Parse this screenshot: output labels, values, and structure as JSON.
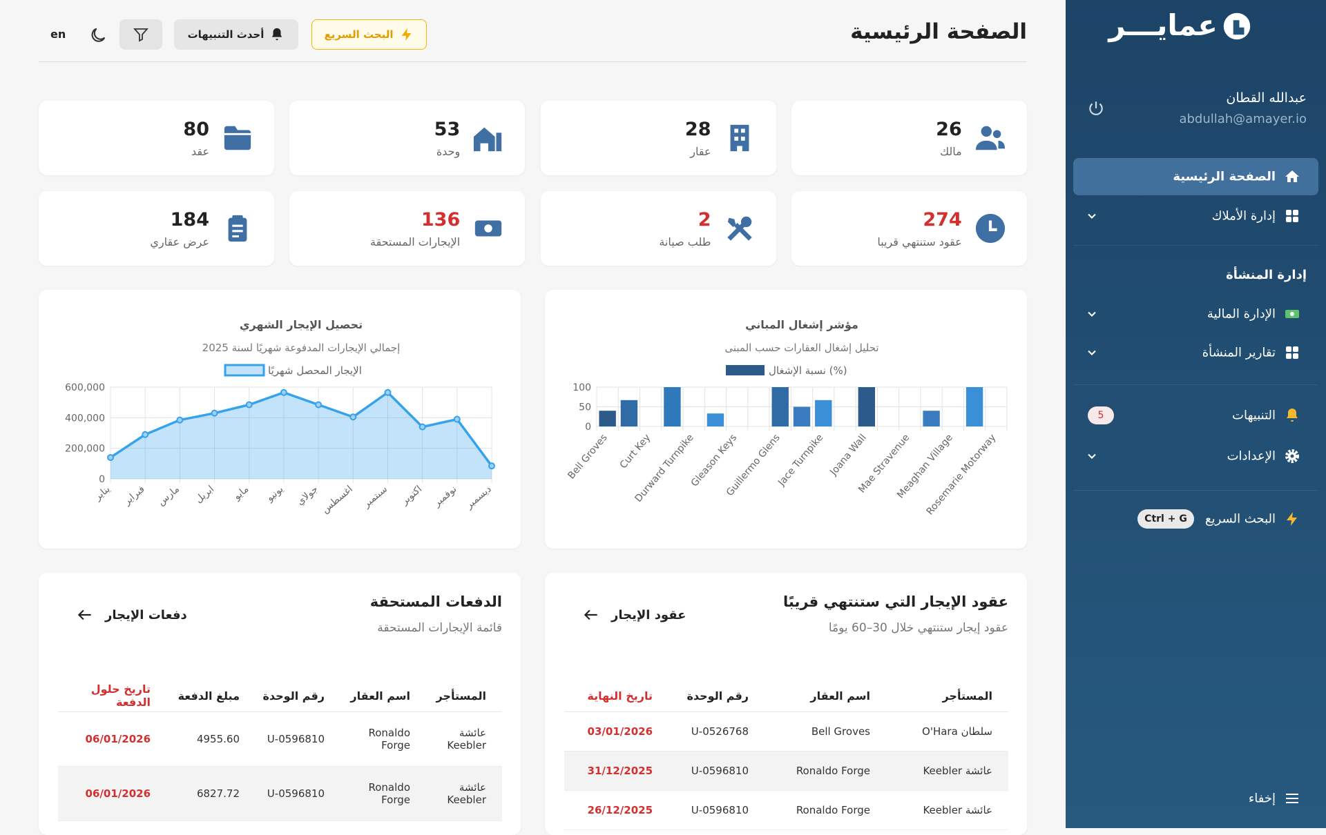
{
  "sidebar": {
    "logo": "عمايـــر",
    "user": {
      "name": "عبدالله القطان",
      "email": "abdullah@amayer.io"
    },
    "nav": [
      {
        "label": "الصفحة الرئيسية"
      },
      {
        "label": "إدارة الأملاك"
      }
    ],
    "section": "إدارة المنشأة",
    "section_nav": [
      {
        "label": "الإدارة المالية"
      },
      {
        "label": "تقارير المنشأة"
      },
      {
        "label": "التنبيهات",
        "badge": 5
      },
      {
        "label": "الإعدادات"
      }
    ],
    "quick_search": {
      "label": "البحث السريع",
      "shortcut": "Ctrl + G"
    },
    "hide": "إخفاء"
  },
  "header": {
    "title": "الصفحة الرئيسية",
    "quick_search": "البحث السريع",
    "notifications": "أحدث التنبيهات",
    "language": "en"
  },
  "stats": [
    {
      "value": 26,
      "label": "مالك",
      "color": "#222222"
    },
    {
      "value": 28,
      "label": "عقار",
      "color": "#222222"
    },
    {
      "value": 53,
      "label": "وحدة",
      "color": "#222222"
    },
    {
      "value": 80,
      "label": "عقد",
      "color": "#222222"
    },
    {
      "value": 274,
      "label": "عقود ستنتهي قريبا",
      "color": "#d32f2f"
    },
    {
      "value": 2,
      "label": "طلب صيانة",
      "color": "#d32f2f"
    },
    {
      "value": 136,
      "label": "الإيجارات المستحقة",
      "color": "#d32f2f"
    },
    {
      "value": 184,
      "label": "عرض عقاري",
      "color": "#222222"
    }
  ],
  "chart_data": [
    {
      "type": "bar",
      "title": "مؤشر إشغال المباني",
      "subtitle": "تحليل إشغال العقارات حسب المبنى",
      "categories": [
        "Bell Groves",
        null,
        "Curt Key",
        null,
        "Durward Turnpike",
        null,
        "Gleason Keys",
        null,
        "Guillermo Glens",
        null,
        "Jace Turnpike",
        null,
        "Joana Wall",
        null,
        "Mae Stravenue",
        null,
        "Meaghan Village",
        null,
        "Rosemarie Motorway"
      ],
      "series": [
        {
          "name": "نسبة الإشغال (%)",
          "color": "#2c5a8a",
          "values": [
            40,
            67,
            0,
            100,
            0,
            33,
            0,
            0,
            100,
            50,
            67,
            0,
            100,
            0,
            0,
            40,
            0,
            100,
            0
          ],
          "colors": [
            "#2c5a8a",
            "#2f6ca6",
            "#3a85cc",
            "#2f78bb",
            "#2c5a8a",
            "#3a8fd6",
            "#2c5a8a",
            "#2f6ca6",
            "#2f6ca6",
            "#3a7cbf",
            "#3a8fd6",
            "#2c5a8a",
            "#2c5a8a",
            "#2f6ca6",
            "#3a85cc",
            "#3a7cbf",
            "#2c5a8a",
            "#3a8fd6",
            "#2c5a8a"
          ]
        }
      ],
      "ylim": [
        0,
        100
      ],
      "yticks": [
        0,
        50,
        100
      ],
      "grid": true,
      "legend": "top"
    },
    {
      "type": "area",
      "title": "تحصيل الإيجار الشهري",
      "subtitle": "إجمالي الإيجارات المدفوعة شهريًا لسنة 2025",
      "categories": [
        "يناير",
        "فبراير",
        "مارس",
        "ابريل",
        "مايو",
        "يونيو",
        "جولاي",
        "اغسطس",
        "سبتمبر",
        "اكتوبر",
        "نوفمبر",
        "ديسمبر"
      ],
      "series": [
        {
          "name": "الإيجار المحصل شهريًا",
          "color": "#36a2eb",
          "values": [
            140000,
            290000,
            385000,
            430000,
            485000,
            565000,
            485000,
            405000,
            565000,
            340000,
            390000,
            85000
          ]
        }
      ],
      "ylim": [
        0,
        600000
      ],
      "yticks": [
        0,
        {
          "value": 200000,
          "label": "200,000"
        },
        {
          "value": 400000,
          "label": "400,000"
        },
        {
          "value": 600000,
          "label": "600,000"
        }
      ],
      "grid": true,
      "legend": "top"
    }
  ],
  "tables": [
    {
      "title": "عقود الإيجار التي ستنتهي قريبًا",
      "subtitle": "عقود إيجار ستنتهي خلال 30–60 يومًا",
      "link": "عقود الإيجار",
      "columns": [
        "المستأجر",
        "اسم العقار",
        "رقم الوحدة",
        "تاريخ النهاية"
      ],
      "rows": [
        [
          "سلطان O'Hara",
          "Bell Groves",
          "U-0526768",
          "03/01/2026"
        ],
        [
          "عائشة Keebler",
          "Ronaldo Forge",
          "U-0596810",
          "31/12/2025"
        ],
        [
          "عائشة Keebler",
          "Ronaldo Forge",
          "U-0596810",
          "26/12/2025"
        ]
      ]
    },
    {
      "title": "الدفعات المستحقة",
      "subtitle": "قائمة الإيجارات المستحقة",
      "link": "دفعات الإيجار",
      "columns": [
        "المستأجر",
        "اسم العقار",
        "رقم الوحدة",
        "مبلغ الدفعة",
        "تاريخ حلول الدفعة"
      ],
      "rows": [
        [
          "عائشة Keebler",
          "Ronaldo Forge",
          "U-0596810",
          "4955.60",
          "06/01/2026"
        ],
        [
          "عائشة Keebler",
          "Ronaldo Forge",
          "U-0596810",
          "6827.72",
          "06/01/2026"
        ]
      ]
    }
  ]
}
